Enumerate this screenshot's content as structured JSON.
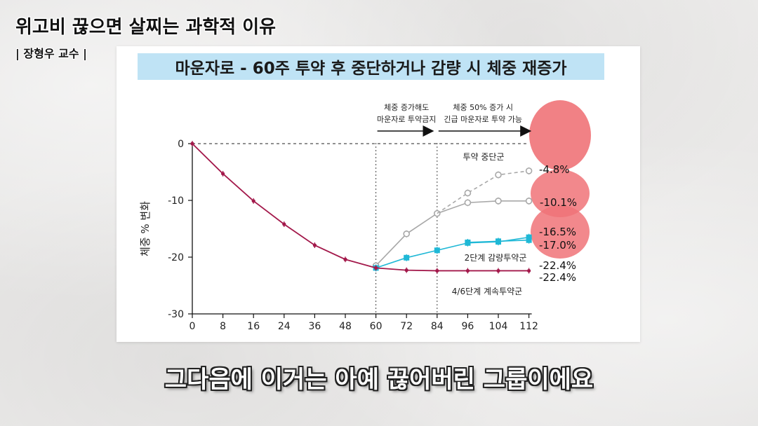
{
  "video": {
    "headline": "위고비 끊으면 살찌는 과학적 이유",
    "speaker": "| 장형우 교수 |",
    "subtitle": "그다음에 이거는 아예 끊어버린 그룹이에요"
  },
  "colors": {
    "discontinued": "#a8a8a8",
    "reduced": "#1fb8d6",
    "continued": "#a3194b",
    "highlight": "#f07378",
    "banner": "#bfe3f5"
  },
  "chart_data": {
    "type": "line",
    "title": "마운자로 - 60주 투약 후 중단하거나 감량 시 체중 재증가",
    "xlabel": "",
    "ylabel": "체중 % 변화",
    "x_ticks": [
      0,
      8,
      16,
      24,
      36,
      48,
      60,
      72,
      84,
      96,
      104,
      112
    ],
    "y_ticks": [
      0,
      -10,
      -20,
      -30
    ],
    "ylim": [
      -30,
      0
    ],
    "grid": false,
    "phase_annotations": [
      {
        "x_start": 60,
        "x_end": 84,
        "lines": [
          "체중 증가해도",
          "마운자로 투약금지"
        ]
      },
      {
        "x_start": 84,
        "x_end": 112,
        "lines": [
          "체중 50% 증가 시",
          "긴급 마운자로 투약 가능"
        ]
      }
    ],
    "series": [
      {
        "name": "4/6단계 계속투약군",
        "color": "#a3194b",
        "x": [
          0,
          8,
          16,
          24,
          36,
          48,
          60,
          72,
          84,
          96,
          104,
          112
        ],
        "y": [
          0,
          -5.3,
          -10.1,
          -14.2,
          -17.9,
          -20.4,
          -21.9,
          -22.3,
          -22.4,
          -22.4,
          -22.4,
          -22.4
        ]
      },
      {
        "name": "2단계 감량투약군",
        "color": "#1fb8d6",
        "x": [
          60,
          72,
          84,
          96,
          104,
          112
        ],
        "y": [
          -21.9,
          -20.1,
          -18.8,
          -17.5,
          -17.3,
          -16.5
        ]
      },
      {
        "name": "2단계 감량투약군",
        "color": "#1fb8d6",
        "x": [
          96,
          104,
          112
        ],
        "y": [
          -17.4,
          -17.2,
          -17.0
        ]
      },
      {
        "name": "투약 중단군",
        "color": "#a8a8a8",
        "x": [
          60,
          72,
          84,
          96,
          104,
          112
        ],
        "y": [
          -21.5,
          -15.9,
          -12.3,
          -10.4,
          -10.1,
          -10.1
        ]
      },
      {
        "name": "투약 중단군",
        "color": "#a8a8a8",
        "dashed": true,
        "x": [
          84,
          96,
          104,
          112
        ],
        "y": [
          -12.3,
          -8.7,
          -5.5,
          -4.8
        ]
      }
    ],
    "annotations": [
      "-4.8%",
      "-10.1%",
      "-16.5%",
      "-17.0%",
      "-22.4%",
      "-22.4%"
    ]
  }
}
